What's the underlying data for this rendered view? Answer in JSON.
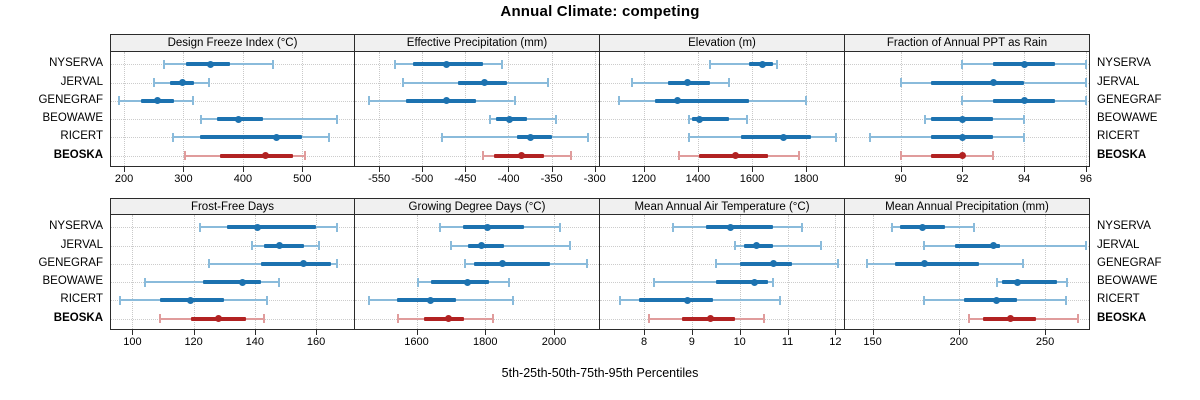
{
  "colors": {
    "series": "#1c72b0",
    "series_light": "#8abbdb",
    "highlight": "#b22222",
    "highlight_light": "#e09c9c",
    "grid": "#c9c9c9",
    "strip_bg": "#f0f0f0",
    "border": "#2b2b2b"
  },
  "chart_data": {
    "type": "percentile_dotplot_trellis",
    "title": "Annual Climate: competing",
    "xlabel": "5th-25th-50th-75th-95th Percentiles",
    "percentiles": [
      "5th",
      "25th",
      "50th",
      "75th",
      "95th"
    ],
    "categories": [
      "NYSERVA",
      "JERVAL",
      "GENEGRAF",
      "BEOWAWE",
      "RICERT",
      "BEOSKA"
    ],
    "highlight_category": "BEOSKA",
    "legend_position": "none",
    "grid": "dotted",
    "panels": [
      {
        "title": "Design Freeze Index (°C)",
        "row": 0,
        "col": 0,
        "ticks": [
          200,
          300,
          400,
          500
        ],
        "xlim": [
          178,
          587
        ],
        "series": {
          "NYSERVA": [
            267,
            304,
            345,
            378,
            451
          ],
          "JERVAL": [
            251,
            278,
            298,
            317,
            343
          ],
          "GENEGRAF": [
            192,
            228,
            257,
            284,
            316
          ],
          "BEOWAWE": [
            330,
            356,
            392,
            434,
            559
          ],
          "RICERT": [
            283,
            328,
            456,
            500,
            545
          ],
          "BEOSKA": [
            302,
            361,
            438,
            484,
            504
          ]
        }
      },
      {
        "title": "Effective Precipitation (mm)",
        "row": 0,
        "col": 1,
        "ticks": [
          -550,
          -500,
          -450,
          -400,
          -350,
          -300
        ],
        "xlim": [
          -578,
          -295
        ],
        "series": {
          "NYSERVA": [
            -532,
            -511,
            -472,
            -430,
            -408
          ],
          "JERVAL": [
            -522,
            -458,
            -428,
            -402,
            -354
          ],
          "GENEGRAF": [
            -562,
            -519,
            -472,
            -438,
            -393
          ],
          "BEOWAWE": [
            -422,
            -414,
            -399,
            -378,
            -345
          ],
          "RICERT": [
            -477,
            -390,
            -374,
            -350,
            -308
          ],
          "BEOSKA": [
            -430,
            -417,
            -385,
            -359,
            -327
          ]
        }
      },
      {
        "title": "Elevation (m)",
        "row": 0,
        "col": 2,
        "ticks": [
          1200,
          1400,
          1600,
          1800
        ],
        "xlim": [
          1038,
          1940
        ],
        "series": {
          "NYSERVA": [
            1443,
            1588,
            1638,
            1676,
            1692
          ],
          "JERVAL": [
            1155,
            1289,
            1363,
            1443,
            1516
          ],
          "GENEGRAF": [
            1108,
            1240,
            1326,
            1590,
            1799
          ],
          "BEOWAWE": [
            1367,
            1378,
            1406,
            1516,
            1582
          ],
          "RICERT": [
            1368,
            1560,
            1715,
            1817,
            1911
          ],
          "BEOSKA": [
            1330,
            1404,
            1540,
            1658,
            1772
          ]
        }
      },
      {
        "title": "Fraction of Annual PPT as Rain",
        "row": 0,
        "col": 3,
        "ticks": [
          90,
          92,
          94,
          96
        ],
        "xlim": [
          88.2,
          96.1
        ],
        "series": {
          "NYSERVA": [
            92,
            93,
            94,
            95,
            96
          ],
          "JERVAL": [
            90,
            91,
            93,
            94,
            96
          ],
          "GENEGRAF": [
            92,
            93,
            94,
            95,
            96
          ],
          "BEOWAWE": [
            90.8,
            91,
            92,
            93,
            94
          ],
          "RICERT": [
            89,
            91,
            92,
            93,
            94
          ],
          "BEOSKA": [
            90,
            91,
            92,
            92,
            93
          ]
        }
      },
      {
        "title": "Frost-Free Days",
        "row": 1,
        "col": 0,
        "ticks": [
          100,
          120,
          140,
          160
        ],
        "xlim": [
          93,
          172.4
        ],
        "series": {
          "NYSERVA": [
            122,
            131,
            141,
            160,
            167
          ],
          "JERVAL": [
            139,
            143,
            148,
            156,
            161
          ],
          "GENEGRAF": [
            125,
            142,
            156,
            165,
            167
          ],
          "BEOWAWE": [
            104,
            123,
            136,
            142,
            148
          ],
          "RICERT": [
            96,
            109,
            119,
            130,
            144
          ],
          "BEOSKA": [
            109,
            119,
            128,
            137,
            143
          ]
        }
      },
      {
        "title": "Growing Degree Days (°C)",
        "row": 1,
        "col": 1,
        "ticks": [
          1600,
          1800,
          2000
        ],
        "xlim": [
          1421,
          2131
        ],
        "series": {
          "NYSERVA": [
            1667,
            1735,
            1806,
            1914,
            2017
          ],
          "JERVAL": [
            1701,
            1750,
            1790,
            1856,
            2047
          ],
          "GENEGRAF": [
            1742,
            1766,
            1851,
            1988,
            2097
          ],
          "BEOWAWE": [
            1605,
            1643,
            1747,
            1812,
            1868
          ],
          "RICERT": [
            1462,
            1542,
            1641,
            1714,
            1880
          ],
          "BEOSKA": [
            1545,
            1621,
            1694,
            1737,
            1824
          ]
        }
      },
      {
        "title": "Mean Annual Air Temperature (°C)",
        "row": 1,
        "col": 2,
        "ticks": [
          8,
          9,
          10,
          11,
          12
        ],
        "xlim": [
          7.08,
          12.18
        ],
        "series": {
          "NYSERVA": [
            8.6,
            9.3,
            9.8,
            10.7,
            11.3
          ],
          "JERVAL": [
            9.9,
            10.1,
            10.35,
            10.7,
            11.7
          ],
          "GENEGRAF": [
            9.5,
            10.0,
            10.7,
            11.1,
            12.05
          ],
          "BEOWAWE": [
            8.2,
            9.5,
            10.3,
            10.6,
            10.7
          ],
          "RICERT": [
            7.5,
            7.9,
            8.9,
            9.45,
            10.85
          ],
          "BEOSKA": [
            8.1,
            8.8,
            9.4,
            9.9,
            10.5
          ]
        }
      },
      {
        "title": "Mean Annual Precipitation (mm)",
        "row": 1,
        "col": 3,
        "ticks": [
          150,
          200,
          250
        ],
        "xlim": [
          134,
          275.5
        ],
        "series": {
          "NYSERVA": [
            161,
            166,
            179,
            192,
            209
          ],
          "JERVAL": [
            180,
            198,
            220,
            224,
            274
          ],
          "GENEGRAF": [
            147,
            163,
            180,
            212,
            237
          ],
          "BEOWAWE": [
            222,
            225,
            234,
            257,
            263
          ],
          "RICERT": [
            180,
            203,
            222,
            234,
            262
          ],
          "BEOSKA": [
            206,
            214,
            230,
            245,
            269
          ]
        }
      }
    ]
  }
}
